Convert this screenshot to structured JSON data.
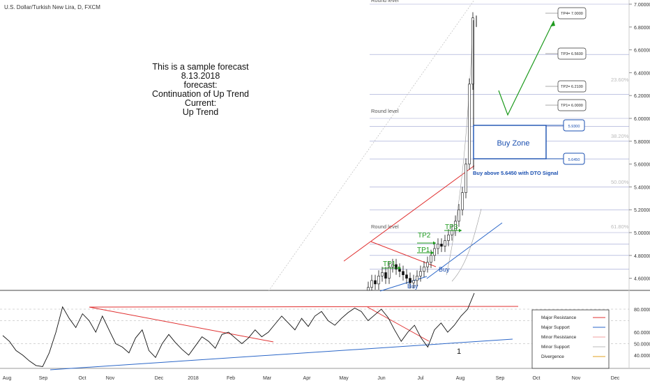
{
  "symbol": "U.S. Dollar/Turkish New Lira, D, FXCM",
  "note_lines": [
    "This is a sample forecast",
    "8.13.2018",
    "forecast:",
    "Continuation of Up Trend",
    "Current:",
    "Up Trend"
  ],
  "colors": {
    "resistance_major": "#e03030",
    "support_major": "#2a66c8",
    "buyzone": "#1a4fb0",
    "target": "#1d9a1d",
    "axis_text": "#333333"
  },
  "chart_data": [
    {
      "type": "line",
      "title": "U.S. Dollar/Turkish New Lira, D, FXCM",
      "yticks": [
        "7.00000",
        "6.80000",
        "6.60000",
        "6.40000",
        "6.20000",
        "6.00000",
        "5.80000",
        "5.60000",
        "5.40000",
        "5.20000",
        "5.00000",
        "4.80000",
        "4.60000"
      ],
      "xticks": [
        "Aug",
        "Sep",
        "Oct",
        "Nov",
        "Dec",
        "2018",
        "Feb",
        "Mar",
        "Apr",
        "May",
        "Jun",
        "Jul",
        "Aug",
        "Sep",
        "Oct",
        "Nov",
        "Dec"
      ],
      "round_levels": [
        "Round level",
        "Round level",
        "Round level"
      ],
      "fib_levels": [
        "23.60%",
        "38.20%",
        "50.00%",
        "61.80%"
      ],
      "targets": [
        "TP4= 7.0000",
        "TP3= 6.5600",
        "TP2= 6.2100",
        "TP1= 6.0000"
      ],
      "buy_zone": {
        "label": "Buy Zone",
        "top": "5.9300",
        "bottom": "5.6450",
        "signal": "Buy above 5.6450 with DTO Signal"
      },
      "chart_labels": {
        "tp": [
          "TP1",
          "TP2",
          "TP1",
          "TP3"
        ],
        "buy": [
          "Buy",
          "Buy"
        ]
      },
      "price_close": [
        4.52,
        4.58,
        4.55,
        4.62,
        4.65,
        4.6,
        4.7,
        4.72,
        4.68,
        4.66,
        4.63,
        4.6,
        4.56,
        4.58,
        4.62,
        4.66,
        4.7,
        4.74,
        4.8,
        4.86,
        4.9,
        4.88,
        4.93,
        4.98,
        5.02,
        5.1,
        5.2,
        5.35,
        5.6,
        6.3,
        6.88
      ]
    },
    {
      "type": "line",
      "yticks": [
        "80.0000",
        "60.0000",
        "50.0000",
        "40.0000"
      ],
      "divergence_label": "1",
      "legend": [
        "Major Resistance",
        "Major Support",
        "Minor Resistance",
        "Minor Support",
        "Divergence"
      ],
      "osc": [
        57,
        52,
        44,
        40,
        35,
        31,
        30,
        42,
        60,
        82,
        72,
        64,
        76,
        70,
        60,
        74,
        62,
        50,
        47,
        42,
        55,
        62,
        44,
        38,
        50,
        58,
        51,
        45,
        40,
        48,
        56,
        52,
        46,
        58,
        60,
        55,
        50,
        55,
        62,
        56,
        60,
        67,
        74,
        68,
        62,
        72,
        65,
        74,
        78,
        70,
        66,
        72,
        77,
        81,
        78,
        70,
        75,
        80,
        73,
        62,
        52,
        60,
        66,
        55,
        47,
        62,
        68,
        60,
        66,
        74,
        80,
        94
      ]
    }
  ]
}
